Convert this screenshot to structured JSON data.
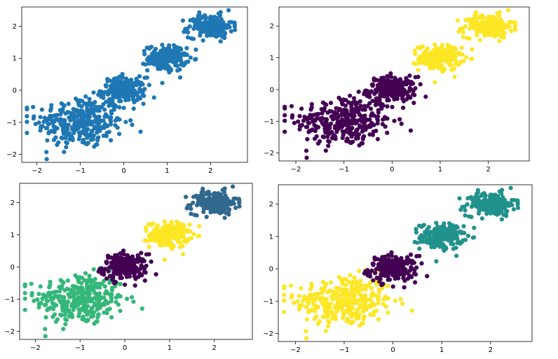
{
  "chart_data": [
    {
      "type": "scatter",
      "title": "",
      "xlabel": "",
      "ylabel": "",
      "xlim": [
        -2.35,
        2.85
      ],
      "ylim": [
        -2.25,
        2.6
      ],
      "xticks": [
        -2,
        -1,
        0,
        1,
        2
      ],
      "yticks": [
        -2,
        -1,
        0,
        1,
        2
      ],
      "grid": false,
      "coloring": "single",
      "color": "#1f77b4",
      "clusters": [
        {
          "center": [
            -1.0,
            -1.0
          ],
          "spread": [
            0.5,
            0.4
          ],
          "n": 320
        },
        {
          "center": [
            0.0,
            0.0
          ],
          "spread": [
            0.25,
            0.2
          ],
          "n": 200
        },
        {
          "center": [
            1.0,
            1.0
          ],
          "spread": [
            0.22,
            0.2
          ],
          "n": 180
        },
        {
          "center": [
            2.0,
            2.0
          ],
          "spread": [
            0.25,
            0.18
          ],
          "n": 200
        }
      ]
    },
    {
      "type": "scatter",
      "title": "",
      "xlabel": "",
      "ylabel": "",
      "xlim": [
        -2.35,
        2.85
      ],
      "ylim": [
        -2.25,
        2.6
      ],
      "xticks": [
        -2,
        -1,
        0,
        1,
        2
      ],
      "yticks": [
        -2,
        -1,
        0,
        1,
        2
      ],
      "grid": false,
      "coloring": "cluster",
      "clusters": [
        {
          "center": [
            -1.0,
            -1.0
          ],
          "spread": [
            0.5,
            0.4
          ],
          "n": 320,
          "color": "#440154"
        },
        {
          "center": [
            0.0,
            0.0
          ],
          "spread": [
            0.25,
            0.2
          ],
          "n": 200,
          "color": "#440154"
        },
        {
          "center": [
            1.0,
            1.0
          ],
          "spread": [
            0.22,
            0.2
          ],
          "n": 180,
          "color": "#fde725"
        },
        {
          "center": [
            2.0,
            2.0
          ],
          "spread": [
            0.25,
            0.18
          ],
          "n": 200,
          "color": "#fde725"
        }
      ]
    },
    {
      "type": "scatter",
      "title": "",
      "xlabel": "",
      "ylabel": "",
      "xlim": [
        -2.35,
        2.85
      ],
      "ylim": [
        -2.25,
        2.6
      ],
      "xticks": [
        -2,
        -1,
        0,
        1,
        2
      ],
      "yticks": [
        -2,
        -1,
        0,
        1,
        2
      ],
      "grid": false,
      "coloring": "cluster",
      "clusters": [
        {
          "center": [
            -1.0,
            -1.0
          ],
          "spread": [
            0.5,
            0.4
          ],
          "n": 320,
          "color": "#35b779"
        },
        {
          "center": [
            0.0,
            0.0
          ],
          "spread": [
            0.25,
            0.2
          ],
          "n": 200,
          "color": "#440154"
        },
        {
          "center": [
            1.0,
            1.0
          ],
          "spread": [
            0.22,
            0.2
          ],
          "n": 180,
          "color": "#fde725"
        },
        {
          "center": [
            2.0,
            2.0
          ],
          "spread": [
            0.25,
            0.18
          ],
          "n": 200,
          "color": "#31688e"
        }
      ]
    },
    {
      "type": "scatter",
      "title": "",
      "xlabel": "",
      "ylabel": "",
      "xlim": [
        -2.35,
        2.85
      ],
      "ylim": [
        -2.25,
        2.6
      ],
      "xticks": [
        -2,
        -1,
        0,
        1,
        2
      ],
      "yticks": [
        -2,
        -1,
        0,
        1,
        2
      ],
      "grid": false,
      "coloring": "cluster",
      "clusters": [
        {
          "center": [
            -1.0,
            -1.0
          ],
          "spread": [
            0.5,
            0.4
          ],
          "n": 320,
          "color": "#fde725"
        },
        {
          "center": [
            0.0,
            0.0
          ],
          "spread": [
            0.25,
            0.2
          ],
          "n": 200,
          "color": "#440154"
        },
        {
          "center": [
            1.0,
            1.0
          ],
          "spread": [
            0.22,
            0.2
          ],
          "n": 180,
          "color": "#21918c"
        },
        {
          "center": [
            2.0,
            2.0
          ],
          "spread": [
            0.25,
            0.18
          ],
          "n": 200,
          "color": "#21918c"
        }
      ]
    }
  ]
}
